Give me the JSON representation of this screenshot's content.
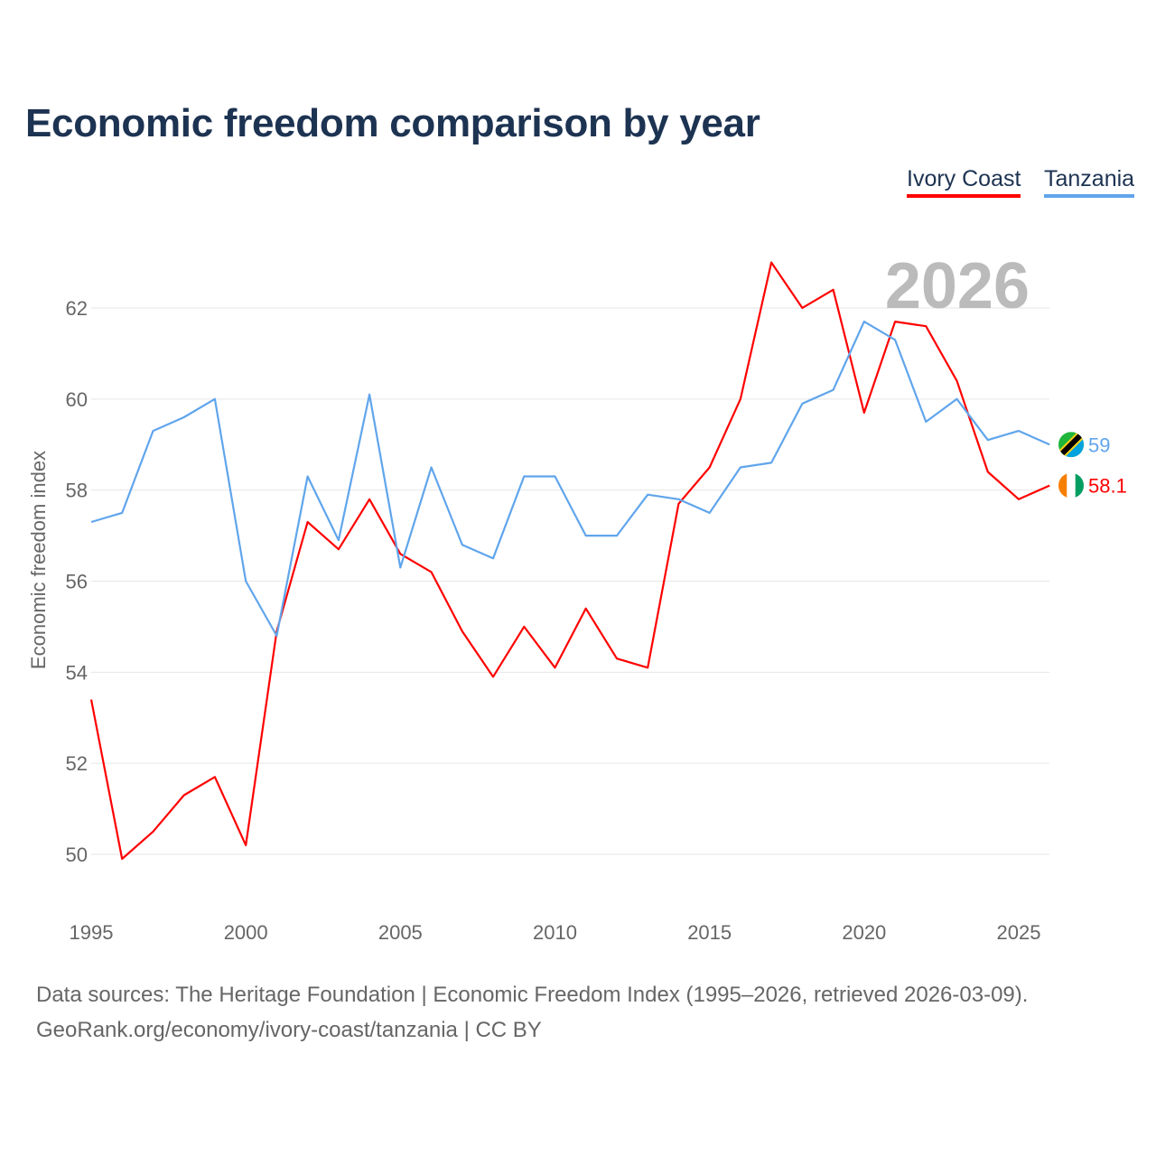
{
  "title": "Economic freedom comparison by year",
  "legend": [
    "Ivory Coast",
    "Tanzania"
  ],
  "year_watermark": "2026",
  "sources": {
    "line1": "Data sources: The Heritage Foundation | Economic Freedom Index (1995–2026, retrieved 2026-03-09).",
    "line2": "GeoRank.org/economy/ivory-coast/tanzania | CC BY"
  },
  "chart_data": {
    "type": "line",
    "title": "Economic freedom comparison by year",
    "xlabel": "",
    "ylabel": "Economic freedom index",
    "xlim": [
      1995,
      2026
    ],
    "ylim": [
      49,
      63.5
    ],
    "xticks": [
      1995,
      2000,
      2005,
      2010,
      2015,
      2020,
      2025
    ],
    "yticks": [
      50,
      52,
      54,
      56,
      58,
      60,
      62
    ],
    "grid": true,
    "legend_position": "top-right",
    "x": [
      1995,
      1996,
      1997,
      1998,
      1999,
      2000,
      2001,
      2002,
      2003,
      2004,
      2005,
      2006,
      2007,
      2008,
      2009,
      2010,
      2011,
      2012,
      2013,
      2014,
      2015,
      2016,
      2017,
      2018,
      2019,
      2020,
      2021,
      2022,
      2023,
      2024,
      2025,
      2026
    ],
    "series": [
      {
        "name": "Ivory Coast",
        "color": "#ff0000",
        "end_label": "58.1",
        "values": [
          53.4,
          49.9,
          50.5,
          51.3,
          51.7,
          50.2,
          54.9,
          57.3,
          56.7,
          57.8,
          56.6,
          56.2,
          54.9,
          53.9,
          55.0,
          54.1,
          55.4,
          54.3,
          54.1,
          57.7,
          58.5,
          60.0,
          63.0,
          62.0,
          62.4,
          59.7,
          61.7,
          61.6,
          60.4,
          58.4,
          57.8,
          58.1
        ]
      },
      {
        "name": "Tanzania",
        "color": "#60a5ec",
        "end_label": "59",
        "values": [
          57.3,
          57.5,
          59.3,
          59.6,
          60.0,
          56.0,
          54.8,
          58.3,
          56.9,
          60.1,
          56.3,
          58.5,
          56.8,
          56.5,
          58.3,
          58.3,
          57.0,
          57.0,
          57.9,
          57.8,
          57.5,
          58.5,
          58.6,
          59.9,
          60.2,
          61.7,
          61.3,
          59.5,
          60.0,
          59.1,
          59.3,
          59.0
        ]
      }
    ]
  }
}
